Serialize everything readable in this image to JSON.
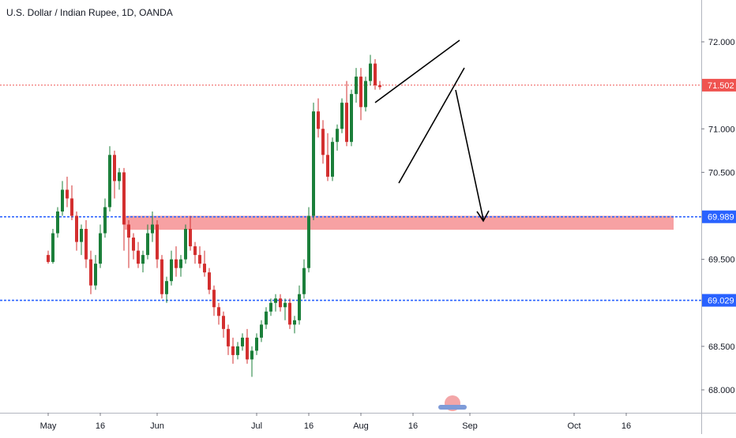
{
  "chart_data": {
    "type": "candlestick",
    "title": "U.S. Dollar / Indian Rupee, 1D, OANDA",
    "symbol": "USD/INR",
    "interval": "1D",
    "source": "OANDA",
    "y_ticks": [
      "72.000",
      "71.000",
      "70.500",
      "69.500",
      "68.500",
      "68.000"
    ],
    "ylim": [
      67.6,
      72.3
    ],
    "x_ticks": [
      {
        "label": "May",
        "index": 0
      },
      {
        "label": "16",
        "index": 11
      },
      {
        "label": "Jun",
        "index": 23
      },
      {
        "label": "Jul",
        "index": 44
      },
      {
        "label": "16",
        "index": 55
      },
      {
        "label": "Aug",
        "index": 66
      },
      {
        "label": "16",
        "index": 77
      },
      {
        "label": "Sep",
        "index": 89
      },
      {
        "label": "Oct",
        "index": 111
      },
      {
        "label": "16",
        "index": 122
      }
    ],
    "price_labels": [
      {
        "label": "71.502",
        "value": 71.502,
        "color": "#ef5350",
        "style": "dotted"
      },
      {
        "label": "69.989",
        "value": 69.989,
        "color": "#2962ff",
        "style": "dashed"
      },
      {
        "label": "69.029",
        "value": 69.029,
        "color": "#2962ff",
        "style": "dashed"
      }
    ],
    "zone": {
      "from": 69.84,
      "to": 70.0,
      "color": "#f7a1a3"
    },
    "colors": {
      "up": "#26a69a",
      "down": "#ef5350",
      "up_dark": "#1b7f3a",
      "down_dark": "#d32f2f"
    },
    "candles": [
      [
        69.55,
        69.6,
        69.45,
        69.47
      ],
      [
        69.47,
        69.85,
        69.45,
        69.8
      ],
      [
        69.8,
        70.1,
        69.75,
        70.05
      ],
      [
        70.05,
        70.4,
        70.0,
        70.3
      ],
      [
        70.3,
        70.45,
        70.1,
        70.2
      ],
      [
        70.2,
        70.35,
        69.95,
        70.0
      ],
      [
        70.0,
        70.05,
        69.6,
        69.7
      ],
      [
        69.7,
        69.9,
        69.55,
        69.85
      ],
      [
        69.85,
        69.95,
        69.4,
        69.5
      ],
      [
        69.5,
        69.6,
        69.1,
        69.2
      ],
      [
        69.2,
        69.55,
        69.15,
        69.45
      ],
      [
        69.45,
        69.9,
        69.4,
        69.8
      ],
      [
        69.8,
        70.2,
        69.75,
        70.1
      ],
      [
        70.1,
        70.8,
        70.05,
        70.7
      ],
      [
        70.7,
        70.75,
        70.2,
        70.4
      ],
      [
        70.4,
        70.55,
        70.3,
        70.5
      ],
      [
        70.5,
        70.55,
        69.6,
        69.9
      ],
      [
        69.9,
        69.95,
        69.4,
        69.75
      ],
      [
        69.75,
        69.8,
        69.5,
        69.6
      ],
      [
        69.6,
        69.7,
        69.4,
        69.45
      ],
      [
        69.45,
        69.6,
        69.35,
        69.55
      ],
      [
        69.55,
        69.9,
        69.5,
        69.8
      ],
      [
        69.8,
        70.05,
        69.7,
        69.9
      ],
      [
        69.9,
        69.95,
        69.4,
        69.5
      ],
      [
        69.5,
        69.55,
        69.05,
        69.1
      ],
      [
        69.1,
        69.3,
        69.0,
        69.25
      ],
      [
        69.25,
        69.6,
        69.2,
        69.5
      ],
      [
        69.5,
        69.65,
        69.3,
        69.4
      ],
      [
        69.4,
        69.55,
        69.3,
        69.5
      ],
      [
        69.5,
        69.9,
        69.45,
        69.85
      ],
      [
        69.85,
        70.0,
        69.6,
        69.65
      ],
      [
        69.65,
        69.7,
        69.45,
        69.55
      ],
      [
        69.55,
        69.65,
        69.4,
        69.45
      ],
      [
        69.45,
        69.6,
        69.3,
        69.35
      ],
      [
        69.35,
        69.4,
        69.1,
        69.15
      ],
      [
        69.15,
        69.2,
        68.85,
        68.95
      ],
      [
        68.95,
        69.0,
        68.75,
        68.85
      ],
      [
        68.85,
        68.9,
        68.6,
        68.7
      ],
      [
        68.7,
        68.75,
        68.4,
        68.5
      ],
      [
        68.5,
        68.6,
        68.3,
        68.4
      ],
      [
        68.4,
        68.55,
        68.35,
        68.5
      ],
      [
        68.5,
        68.65,
        68.45,
        68.6
      ],
      [
        68.6,
        68.7,
        68.3,
        68.35
      ],
      [
        68.35,
        68.5,
        68.15,
        68.45
      ],
      [
        68.45,
        68.65,
        68.4,
        68.6
      ],
      [
        68.6,
        68.8,
        68.55,
        68.75
      ],
      [
        68.75,
        68.95,
        68.7,
        68.9
      ],
      [
        68.9,
        69.05,
        68.85,
        69.0
      ],
      [
        69.0,
        69.1,
        68.9,
        69.05
      ],
      [
        69.05,
        69.1,
        68.9,
        68.95
      ],
      [
        68.95,
        69.05,
        68.8,
        69.0
      ],
      [
        69.0,
        69.05,
        68.7,
        68.75
      ],
      [
        68.75,
        68.85,
        68.65,
        68.8
      ],
      [
        68.8,
        69.2,
        68.75,
        69.1
      ],
      [
        69.1,
        69.5,
        69.05,
        69.4
      ],
      [
        69.4,
        70.1,
        69.35,
        70.0
      ],
      [
        70.0,
        71.3,
        69.95,
        71.2
      ],
      [
        71.2,
        71.35,
        70.9,
        71.0
      ],
      [
        71.0,
        71.1,
        70.6,
        70.7
      ],
      [
        70.7,
        70.95,
        70.4,
        70.45
      ],
      [
        70.45,
        70.9,
        70.4,
        70.85
      ],
      [
        70.85,
        71.05,
        70.75,
        71.0
      ],
      [
        71.0,
        71.35,
        70.95,
        71.3
      ],
      [
        71.3,
        71.55,
        70.8,
        70.85
      ],
      [
        70.85,
        71.45,
        70.8,
        71.4
      ],
      [
        71.4,
        71.7,
        71.3,
        71.6
      ],
      [
        71.6,
        71.7,
        71.1,
        71.25
      ],
      [
        71.25,
        71.6,
        71.2,
        71.55
      ],
      [
        71.55,
        71.85,
        71.5,
        71.75
      ],
      [
        71.75,
        71.8,
        71.45,
        71.5
      ],
      [
        71.5,
        71.55,
        71.45,
        71.48
      ]
    ]
  },
  "axis": {
    "price_labels": [
      "71.502",
      "69.989",
      "69.029"
    ]
  }
}
